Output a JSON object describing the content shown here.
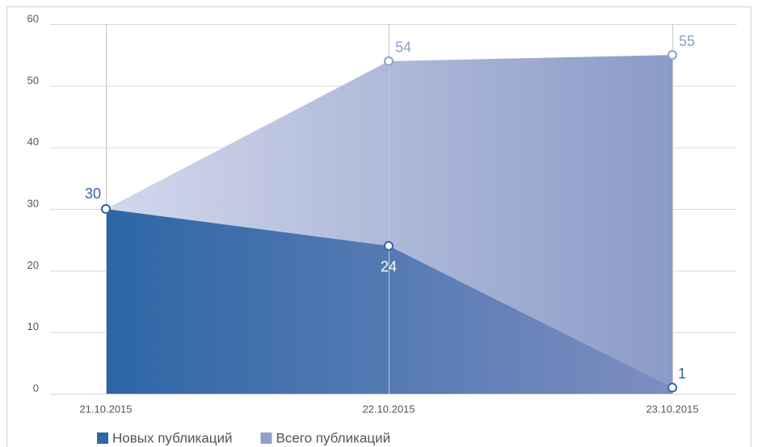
{
  "chart_data": {
    "type": "area",
    "categories": [
      "21.10.2015",
      "22.10.2015",
      "23.10.2015"
    ],
    "series": [
      {
        "name": "Новых публикаций",
        "color": "#2f66a4",
        "values": [
          30,
          24,
          1
        ]
      },
      {
        "name": "Всего публикаций",
        "color": "#8fa0cb",
        "values": [
          30,
          54,
          55
        ]
      }
    ],
    "ylim": [
      0,
      60
    ],
    "yticks": [
      0,
      10,
      20,
      30,
      40,
      50,
      60
    ],
    "grid": true,
    "legend": "bottom-left"
  }
}
